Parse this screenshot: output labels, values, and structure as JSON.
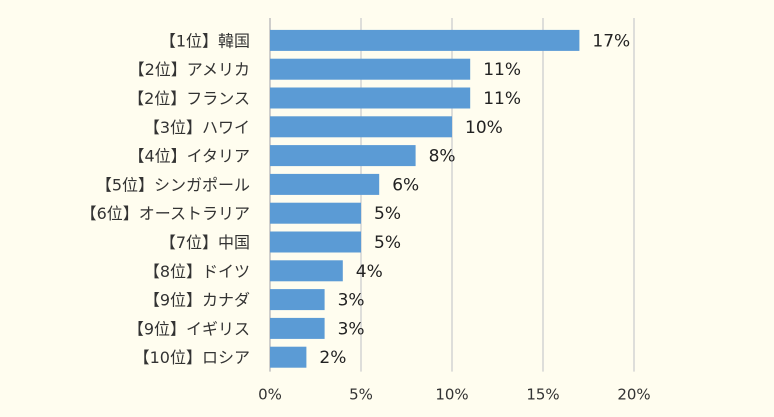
{
  "chart_data": {
    "type": "bar",
    "orientation": "horizontal",
    "title": "",
    "xlabel": "",
    "ylabel": "",
    "xlim": [
      0,
      20
    ],
    "x_ticks": [
      "0%",
      "5%",
      "10%",
      "15%",
      "20%"
    ],
    "grid": true,
    "categories": [
      "【1位】韓国",
      "【2位】アメリカ",
      "【2位】フランス",
      "【3位】ハワイ",
      "【4位】イタリア",
      "【5位】シンガポール",
      "【6位】オーストラリア",
      "【7位】中国",
      "【8位】ドイツ",
      "【9位】カナダ",
      "【9位】イギリス",
      "【10位】ロシア"
    ],
    "values": [
      17,
      11,
      11,
      10,
      8,
      6,
      5,
      5,
      4,
      3,
      3,
      2
    ],
    "value_labels": [
      "17%",
      "11%",
      "11%",
      "10%",
      "8%",
      "6%",
      "5%",
      "5%",
      "4%",
      "3%",
      "3%",
      "2%"
    ],
    "colors": {
      "bar": "#5b9bd5",
      "background": "#fffdef",
      "grid": "#d4d4d4"
    }
  }
}
